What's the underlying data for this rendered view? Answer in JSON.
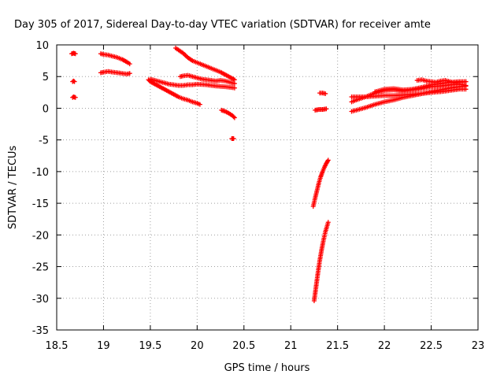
{
  "chart_data": {
    "type": "scatter",
    "title": "Day 305 of 2017, Sidereal Day-to-day VTEC variation (SDTVAR) for receiver amte",
    "xlabel": "GPS time / hours",
    "ylabel": "SDTVAR / TECUs",
    "xlim": [
      18.5,
      23
    ],
    "ylim": [
      -35,
      10
    ],
    "xticks": [
      "18.5",
      "19",
      "19.5",
      "20",
      "20.5",
      "21",
      "21.5",
      "22",
      "22.5",
      "23"
    ],
    "yticks": [
      "10",
      "5",
      "0",
      "-5",
      "-10",
      "-15",
      "-20",
      "-25",
      "-30",
      "-35"
    ],
    "grid": true,
    "marker": "plus",
    "color": "#ff0000",
    "series": [
      {
        "name": "track-1",
        "x": [
          18.66,
          18.68,
          18.7
        ],
        "y": [
          8.6,
          8.7,
          8.6
        ]
      },
      {
        "name": "track-2",
        "x": [
          18.67,
          18.68,
          18.69
        ],
        "y": [
          4.2,
          4.3,
          4.2
        ]
      },
      {
        "name": "track-3",
        "x": [
          18.67,
          18.68,
          18.7
        ],
        "y": [
          1.7,
          1.8,
          1.7
        ]
      },
      {
        "name": "track-4",
        "x": [
          18.97,
          19.0,
          19.05,
          19.1,
          19.15,
          19.2,
          19.25,
          19.28
        ],
        "y": [
          8.6,
          8.5,
          8.4,
          8.2,
          8.0,
          7.7,
          7.3,
          7.0
        ]
      },
      {
        "name": "track-5",
        "x": [
          18.97,
          19.0,
          19.05,
          19.1,
          19.15,
          19.2,
          19.25,
          19.28
        ],
        "y": [
          5.6,
          5.7,
          5.8,
          5.7,
          5.6,
          5.5,
          5.4,
          5.5
        ]
      },
      {
        "name": "track-6",
        "x": [
          19.48,
          19.5,
          19.55,
          19.6,
          19.65,
          19.7,
          19.75,
          19.8,
          19.85,
          19.9,
          19.95,
          20.0,
          20.03
        ],
        "y": [
          4.5,
          4.2,
          3.8,
          3.4,
          3.0,
          2.6,
          2.2,
          1.8,
          1.5,
          1.3,
          1.0,
          0.8,
          0.6
        ]
      },
      {
        "name": "track-7",
        "x": [
          19.5,
          19.55,
          19.6,
          19.65,
          19.7,
          19.75,
          19.8,
          19.85,
          19.9,
          19.95,
          20.0,
          20.1,
          20.2,
          20.3,
          20.4
        ],
        "y": [
          4.6,
          4.4,
          4.2,
          4.0,
          3.8,
          3.7,
          3.6,
          3.6,
          3.7,
          3.7,
          3.8,
          3.7,
          3.5,
          3.4,
          3.2
        ]
      },
      {
        "name": "track-8",
        "x": [
          19.77,
          19.8,
          19.85,
          19.9,
          19.95,
          20.0,
          20.05,
          20.1,
          20.15,
          20.2,
          20.25,
          20.3,
          20.35,
          20.4
        ],
        "y": [
          9.5,
          9.2,
          8.7,
          8.0,
          7.5,
          7.2,
          6.9,
          6.6,
          6.3,
          6.0,
          5.7,
          5.3,
          4.9,
          4.5
        ]
      },
      {
        "name": "track-9",
        "x": [
          19.82,
          19.85,
          19.9,
          19.95,
          20.0,
          20.05,
          20.1,
          20.15,
          20.2,
          20.25,
          20.3,
          20.35,
          20.4
        ],
        "y": [
          5.0,
          5.1,
          5.2,
          5.0,
          4.8,
          4.6,
          4.5,
          4.4,
          4.3,
          4.4,
          4.3,
          4.1,
          3.9
        ]
      },
      {
        "name": "track-10",
        "x": [
          20.26,
          20.3,
          20.34,
          20.38,
          20.4
        ],
        "y": [
          -0.3,
          -0.5,
          -0.8,
          -1.2,
          -1.5
        ]
      },
      {
        "name": "track-11",
        "x": [
          20.37,
          20.38,
          20.39
        ],
        "y": [
          -4.8,
          -4.8,
          -4.8
        ]
      },
      {
        "name": "track-12",
        "x": [
          21.24,
          21.26,
          21.28,
          21.3,
          21.32,
          21.34,
          21.36,
          21.38,
          21.4
        ],
        "y": [
          -15.5,
          -14.2,
          -13.0,
          -11.8,
          -10.8,
          -10.0,
          -9.3,
          -8.7,
          -8.2
        ]
      },
      {
        "name": "track-13",
        "x": [
          21.25,
          21.27,
          21.29,
          21.31,
          21.33,
          21.35,
          21.37,
          21.39,
          21.4
        ],
        "y": [
          -30.4,
          -28.2,
          -26.0,
          -24.0,
          -22.3,
          -20.8,
          -19.5,
          -18.5,
          -18.0
        ]
      },
      {
        "name": "track-14",
        "x": [
          21.26,
          21.3,
          21.34,
          21.38
        ],
        "y": [
          -0.3,
          -0.2,
          -0.2,
          -0.1
        ]
      },
      {
        "name": "track-15",
        "x": [
          21.31,
          21.34,
          21.37
        ],
        "y": [
          2.4,
          2.4,
          2.3
        ]
      },
      {
        "name": "track-16",
        "x": [
          21.65,
          21.7,
          21.8,
          21.9,
          22.0,
          22.1,
          22.2,
          22.3,
          22.4,
          22.5,
          22.6,
          22.7,
          22.8,
          22.87
        ],
        "y": [
          1.8,
          1.8,
          1.8,
          1.9,
          2.0,
          2.0,
          2.1,
          2.2,
          2.3,
          2.5,
          2.6,
          2.8,
          3.0,
          3.0
        ]
      },
      {
        "name": "track-17",
        "x": [
          21.65,
          21.7,
          21.8,
          21.9,
          22.0,
          22.1,
          22.2,
          22.3,
          22.4,
          22.5,
          22.6,
          22.7,
          22.8,
          22.87
        ],
        "y": [
          1.0,
          1.3,
          1.8,
          2.4,
          2.8,
          2.9,
          2.7,
          2.9,
          3.1,
          3.4,
          3.5,
          3.7,
          3.8,
          3.6
        ]
      },
      {
        "name": "track-18",
        "x": [
          21.65,
          21.7,
          21.8,
          21.9,
          22.0,
          22.1,
          22.2,
          22.3,
          22.4,
          22.5,
          22.6,
          22.7,
          22.8,
          22.87
        ],
        "y": [
          -0.5,
          -0.3,
          0.1,
          0.6,
          1.0,
          1.3,
          1.7,
          2.0,
          2.3,
          2.6,
          2.9,
          3.2,
          3.4,
          3.5
        ]
      },
      {
        "name": "track-19",
        "x": [
          21.9,
          22.0,
          22.1,
          22.2,
          22.3,
          22.4,
          22.5,
          22.6,
          22.7,
          22.8,
          22.87
        ],
        "y": [
          2.6,
          3.0,
          3.1,
          2.9,
          3.0,
          3.3,
          3.7,
          3.9,
          4.1,
          4.2,
          4.2
        ]
      },
      {
        "name": "track-20",
        "x": [
          22.35,
          22.4,
          22.45,
          22.5,
          22.55,
          22.6,
          22.65,
          22.7,
          22.75,
          22.8,
          22.87
        ],
        "y": [
          4.4,
          4.5,
          4.3,
          4.2,
          4.1,
          4.3,
          4.4,
          4.2,
          4.0,
          4.1,
          4.2
        ]
      }
    ]
  }
}
